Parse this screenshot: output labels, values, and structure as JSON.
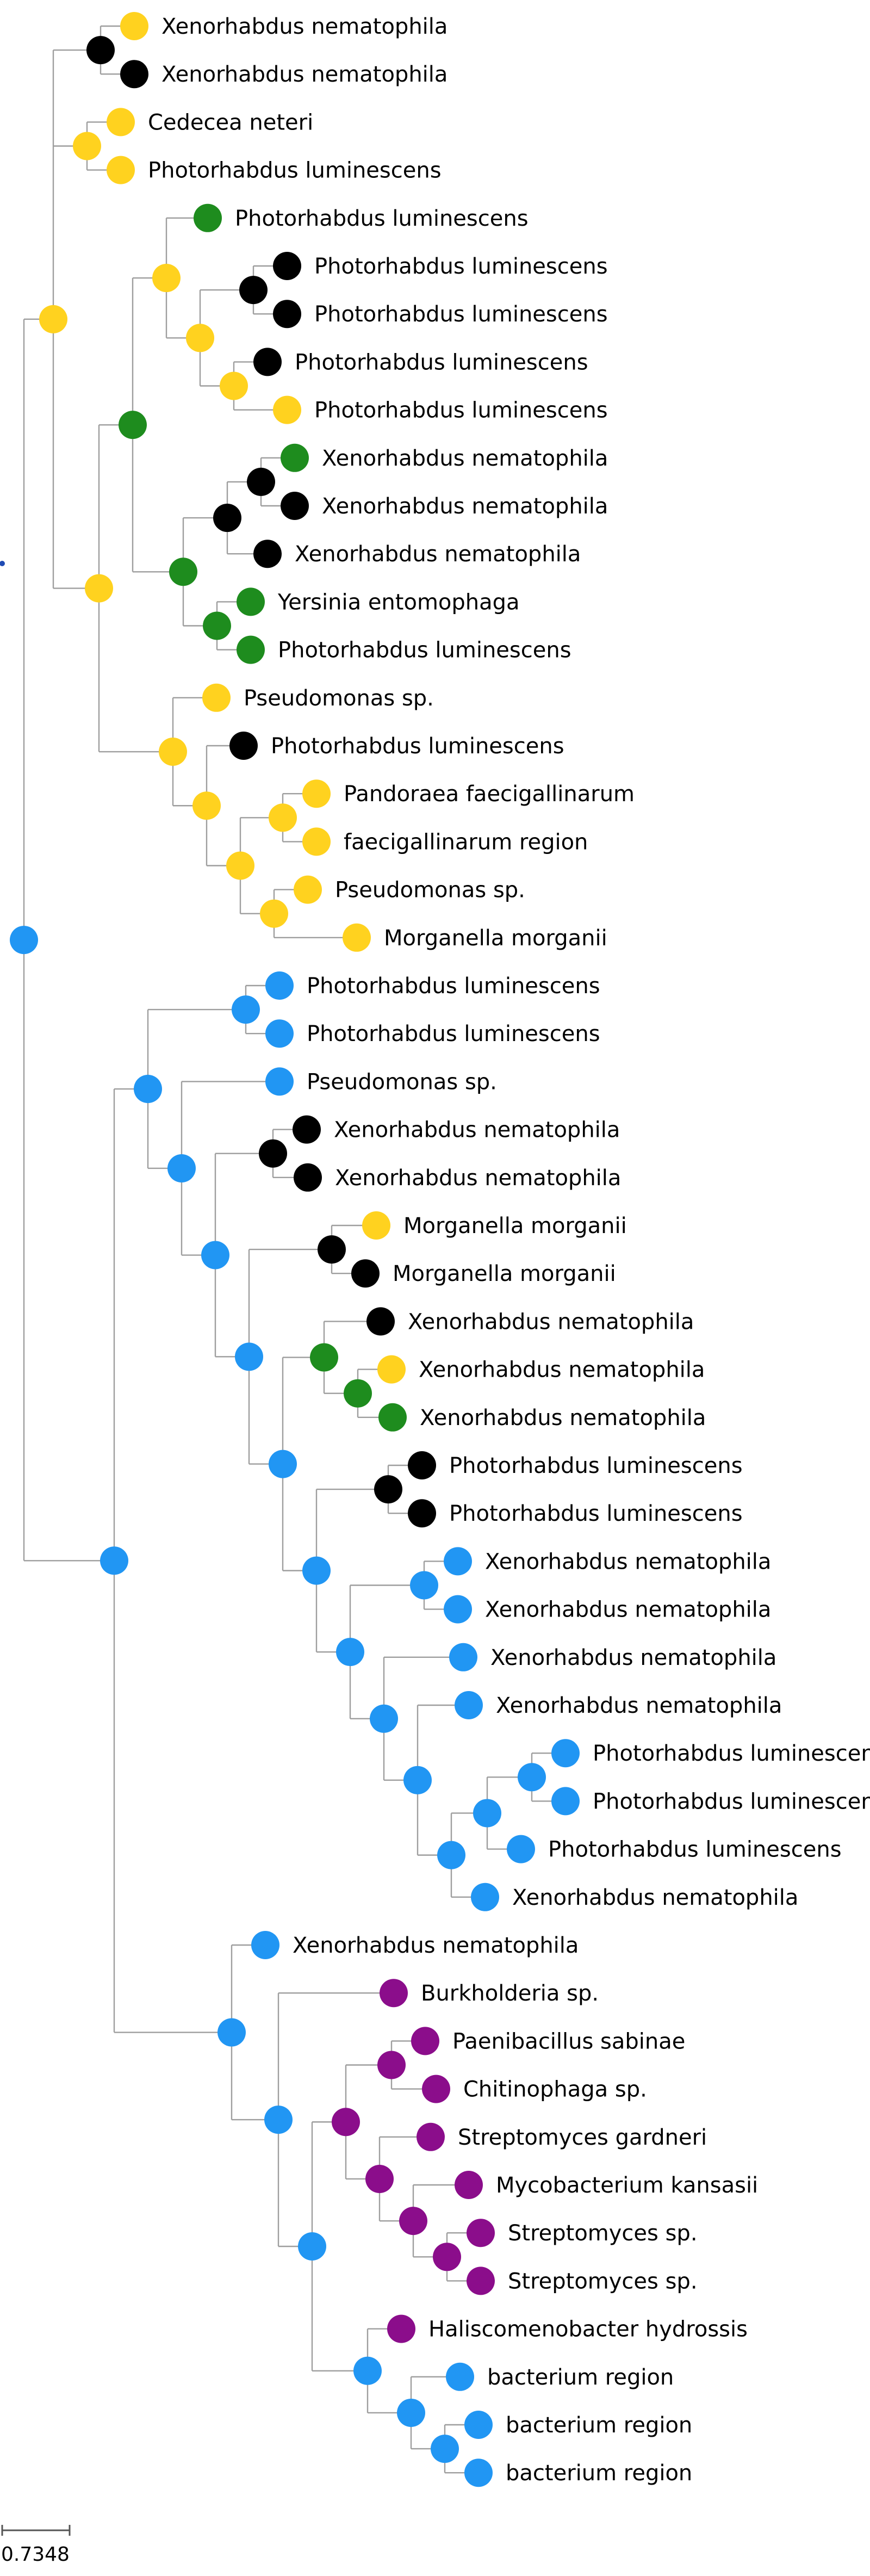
{
  "colors": {
    "yellow": "#FFD21F",
    "green": "#1E8C1E",
    "black": "#000000",
    "blue": "#2196F3",
    "purple": "#8B0D8B",
    "branch": "#9E9E9E",
    "root": "#1F4BB4"
  },
  "scale_bar": {
    "label": "0.7348"
  },
  "tree": {
    "c": "blue",
    "children": [
      {
        "c": "yellow",
        "children": [
          {
            "c": "black",
            "children": [
              {
                "c": "yellow",
                "label": "Xenorhabdus nematophila"
              },
              {
                "c": "black",
                "label": "Xenorhabdus nematophila"
              }
            ]
          },
          {
            "c": "yellow",
            "children": [
              {
                "c": "yellow",
                "label": "Cedecea neteri"
              },
              {
                "c": "yellow",
                "label": "Photorhabdus luminescens"
              }
            ]
          },
          {
            "c": "yellow",
            "children": [
              {
                "c": "green",
                "children": [
                  {
                    "c": "yellow",
                    "children": [
                      {
                        "c": "green",
                        "label": "Photorhabdus luminescens"
                      },
                      {
                        "c": "yellow",
                        "children": [
                          {
                            "c": "black",
                            "children": [
                              {
                                "c": "black",
                                "label": "Photorhabdus luminescens"
                              },
                              {
                                "c": "black",
                                "label": "Photorhabdus luminescens"
                              }
                            ]
                          },
                          {
                            "c": "yellow",
                            "children": [
                              {
                                "c": "black",
                                "label": "Photorhabdus luminescens"
                              },
                              {
                                "c": "yellow",
                                "label": "Photorhabdus luminescens"
                              }
                            ]
                          }
                        ]
                      }
                    ]
                  },
                  {
                    "c": "green",
                    "children": [
                      {
                        "c": "black",
                        "children": [
                          {
                            "c": "black",
                            "children": [
                              {
                                "c": "green",
                                "label": "Xenorhabdus nematophila"
                              },
                              {
                                "c": "black",
                                "label": "Xenorhabdus nematophila"
                              }
                            ]
                          },
                          {
                            "c": "black",
                            "label": "Xenorhabdus nematophila"
                          }
                        ]
                      },
                      {
                        "c": "green",
                        "children": [
                          {
                            "c": "green",
                            "label": "Yersinia entomophaga"
                          },
                          {
                            "c": "green",
                            "label": "Photorhabdus luminescens"
                          }
                        ]
                      }
                    ]
                  }
                ]
              },
              {
                "c": "yellow",
                "children": [
                  {
                    "c": "yellow",
                    "label": "Pseudomonas sp."
                  },
                  {
                    "c": "yellow",
                    "children": [
                      {
                        "c": "black",
                        "label": "Photorhabdus luminescens"
                      },
                      {
                        "c": "yellow",
                        "children": [
                          {
                            "c": "yellow",
                            "children": [
                              {
                                "c": "yellow",
                                "label": "Pandoraea faecigallinarum"
                              },
                              {
                                "c": "yellow",
                                "label": "faecigallinarum region"
                              }
                            ]
                          },
                          {
                            "c": "yellow",
                            "children": [
                              {
                                "c": "yellow",
                                "label": "Pseudomonas sp."
                              },
                              {
                                "c": "yellow",
                                "label": "Morganella morganii"
                              }
                            ]
                          }
                        ]
                      }
                    ]
                  }
                ]
              }
            ]
          }
        ]
      },
      {
        "c": "blue",
        "children": [
          {
            "c": "blue",
            "children": [
              {
                "c": "blue",
                "children": [
                  {
                    "c": "blue",
                    "label": "Photorhabdus luminescens"
                  },
                  {
                    "c": "blue",
                    "label": "Photorhabdus luminescens"
                  }
                ]
              },
              {
                "c": "blue",
                "children": [
                  {
                    "c": "blue",
                    "label": "Pseudomonas sp."
                  },
                  {
                    "c": "blue",
                    "children": [
                      {
                        "c": "black",
                        "children": [
                          {
                            "c": "black",
                            "label": "Xenorhabdus nematophila"
                          },
                          {
                            "c": "black",
                            "label": "Xenorhabdus nematophila"
                          }
                        ]
                      },
                      {
                        "c": "blue",
                        "children": [
                          {
                            "c": "black",
                            "children": [
                              {
                                "c": "yellow",
                                "label": "Morganella morganii"
                              },
                              {
                                "c": "black",
                                "label": "Morganella morganii"
                              }
                            ]
                          },
                          {
                            "c": "blue",
                            "children": [
                              {
                                "c": "green",
                                "children": [
                                  {
                                    "c": "black",
                                    "label": "Xenorhabdus nematophila"
                                  },
                                  {
                                    "c": "green",
                                    "children": [
                                      {
                                        "c": "yellow",
                                        "label": "Xenorhabdus nematophila"
                                      },
                                      {
                                        "c": "green",
                                        "label": "Xenorhabdus nematophila"
                                      }
                                    ]
                                  }
                                ]
                              },
                              {
                                "c": "blue",
                                "children": [
                                  {
                                    "c": "black",
                                    "children": [
                                      {
                                        "c": "black",
                                        "label": "Photorhabdus luminescens"
                                      },
                                      {
                                        "c": "black",
                                        "label": "Photorhabdus luminescens"
                                      }
                                    ]
                                  },
                                  {
                                    "c": "blue",
                                    "children": [
                                      {
                                        "c": "blue",
                                        "children": [
                                          {
                                            "c": "blue",
                                            "label": "Xenorhabdus nematophila"
                                          },
                                          {
                                            "c": "blue",
                                            "label": "Xenorhabdus nematophila"
                                          }
                                        ]
                                      },
                                      {
                                        "c": "blue",
                                        "children": [
                                          {
                                            "c": "blue",
                                            "label": "Xenorhabdus nematophila"
                                          },
                                          {
                                            "c": "blue",
                                            "children": [
                                              {
                                                "c": "blue",
                                                "label": "Xenorhabdus nematophila"
                                              },
                                              {
                                                "c": "blue",
                                                "children": [
                                                  {
                                                    "c": "blue",
                                                    "children": [
                                                      {
                                                        "c": "blue",
                                                        "children": [
                                                          {
                                                            "c": "blue",
                                                            "label": "Photorhabdus luminescens"
                                                          },
                                                          {
                                                            "c": "blue",
                                                            "label": "Photorhabdus luminescens"
                                                          }
                                                        ]
                                                      },
                                                      {
                                                        "c": "blue",
                                                        "label": "Photorhabdus luminescens"
                                                      }
                                                    ]
                                                  },
                                                  {
                                                    "c": "blue",
                                                    "label": "Xenorhabdus nematophila"
                                                  }
                                                ]
                                              }
                                            ]
                                          }
                                        ]
                                      }
                                    ]
                                  }
                                ]
                              }
                            ]
                          }
                        ]
                      }
                    ]
                  }
                ]
              }
            ]
          },
          {
            "c": "blue",
            "children": [
              {
                "c": "blue",
                "label": "Xenorhabdus nematophila"
              },
              {
                "c": "blue",
                "children": [
                  {
                    "c": "purple",
                    "label": "Burkholderia sp."
                  },
                  {
                    "c": "blue",
                    "children": [
                      {
                        "c": "purple",
                        "children": [
                          {
                            "c": "purple",
                            "children": [
                              {
                                "c": "purple",
                                "label": "Paenibacillus sabinae"
                              },
                              {
                                "c": "purple",
                                "label": "Chitinophaga sp."
                              }
                            ]
                          },
                          {
                            "c": "purple",
                            "children": [
                              {
                                "c": "purple",
                                "label": "Streptomyces gardneri"
                              },
                              {
                                "c": "purple",
                                "children": [
                                  {
                                    "c": "purple",
                                    "label": "Mycobacterium kansasii"
                                  },
                                  {
                                    "c": "purple",
                                    "children": [
                                      {
                                        "c": "purple",
                                        "label": "Streptomyces sp."
                                      },
                                      {
                                        "c": "purple",
                                        "label": "Streptomyces sp."
                                      }
                                    ]
                                  }
                                ]
                              }
                            ]
                          }
                        ]
                      },
                      {
                        "c": "blue",
                        "children": [
                          {
                            "c": "purple",
                            "label": "Haliscomenobacter hydrossis"
                          },
                          {
                            "c": "blue",
                            "children": [
                              {
                                "c": "blue",
                                "label": "bacterium region"
                              },
                              {
                                "c": "blue",
                                "children": [
                                  {
                                    "c": "blue",
                                    "label": "bacterium region"
                                  },
                                  {
                                    "c": "blue",
                                    "label": "bacterium region"
                                  }
                                ]
                              }
                            ]
                          }
                        ]
                      }
                    ]
                  }
                ]
              }
            ]
          }
        ]
      }
    ]
  }
}
